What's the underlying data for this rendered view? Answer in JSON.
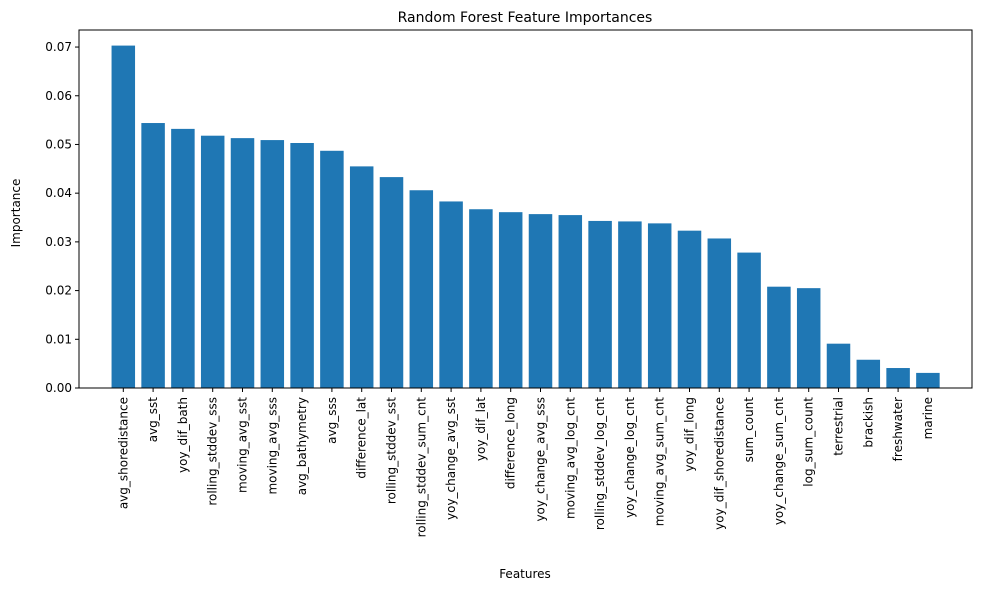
{
  "chart_data": {
    "type": "bar",
    "title": "Random Forest Feature Importances",
    "xlabel": "Features",
    "ylabel": "Importance",
    "ylim": [
      0,
      0.0735
    ],
    "yticks": [
      "0.00",
      "0.01",
      "0.02",
      "0.03",
      "0.04",
      "0.05",
      "0.06",
      "0.07"
    ],
    "bar_color": "#1f77b4",
    "grid": false,
    "categories": [
      "avg_shoredistance",
      "avg_sst",
      "yoy_dif_bath",
      "rolling_stddev_sss",
      "moving_avg_sst",
      "moving_avg_sss",
      "avg_bathymetry",
      "avg_sss",
      "difference_lat",
      "rolling_stddev_sst",
      "rolling_stddev_sum_cnt",
      "yoy_change_avg_sst",
      "yoy_dif_lat",
      "difference_long",
      "yoy_change_avg_sss",
      "moving_avg_log_cnt",
      "rolling_stddev_log_cnt",
      "yoy_change_log_cnt",
      "moving_avg_sum_cnt",
      "yoy_dif_long",
      "yoy_dif_shoredistance",
      "sum_count",
      "yoy_change_sum_cnt",
      "log_sum_count",
      "terrestrial",
      "brackish",
      "freshwater",
      "marine"
    ],
    "values": [
      0.0703,
      0.0544,
      0.0532,
      0.0518,
      0.0513,
      0.0509,
      0.0503,
      0.0487,
      0.0455,
      0.0433,
      0.0406,
      0.0383,
      0.0367,
      0.0361,
      0.0357,
      0.0355,
      0.0343,
      0.0342,
      0.0338,
      0.0323,
      0.0307,
      0.0278,
      0.0208,
      0.0205,
      0.0091,
      0.0058,
      0.0041,
      0.0031
    ]
  }
}
